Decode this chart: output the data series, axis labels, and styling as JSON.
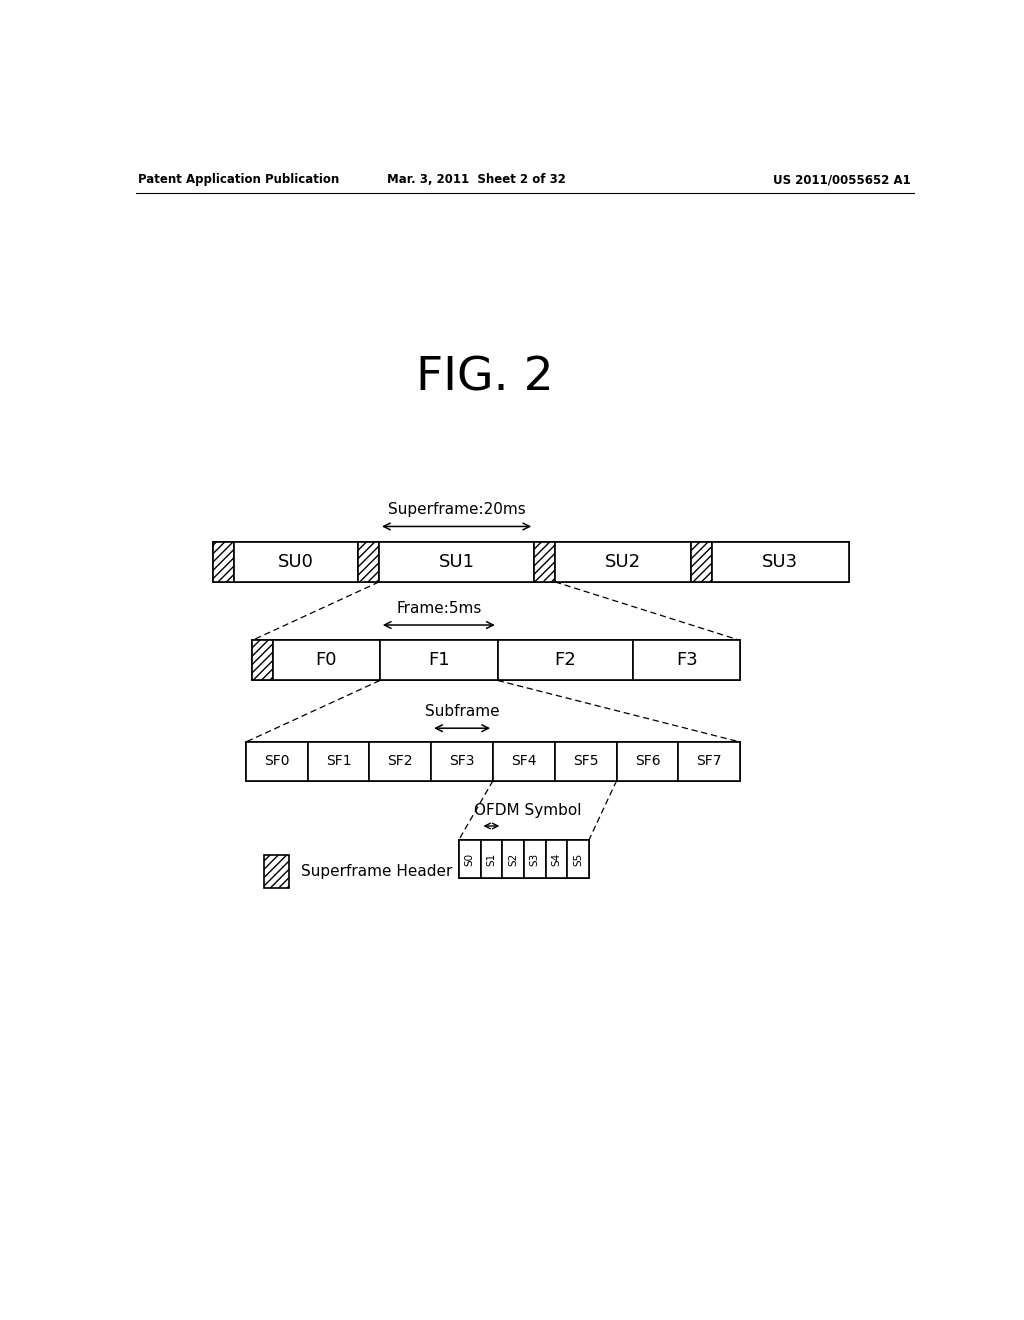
{
  "fig_title": "FIG. 2",
  "header_left": "Patent Application Publication",
  "header_mid": "Mar. 3, 2011  Sheet 2 of 32",
  "header_right": "US 2011/0055652 A1",
  "background_color": "#ffffff",
  "superframe_label": "Superframe:20ms",
  "frame_label": "Frame:5ms",
  "subframe_label": "Subframe",
  "ofdm_label": "OFDM Symbol",
  "sfheader_label": "Superframe Header",
  "superframe_units": [
    "SU0",
    "SU1",
    "SU2",
    "SU3"
  ],
  "frame_units": [
    "F0",
    "F1",
    "F2",
    "F3"
  ],
  "subframe_units": [
    "SF0",
    "SF1",
    "SF2",
    "SF3",
    "SF4",
    "SF5",
    "SF6",
    "SF7"
  ],
  "ofdm_units": [
    "S0",
    "S1",
    "S2",
    "S3",
    "S4",
    "S5"
  ]
}
